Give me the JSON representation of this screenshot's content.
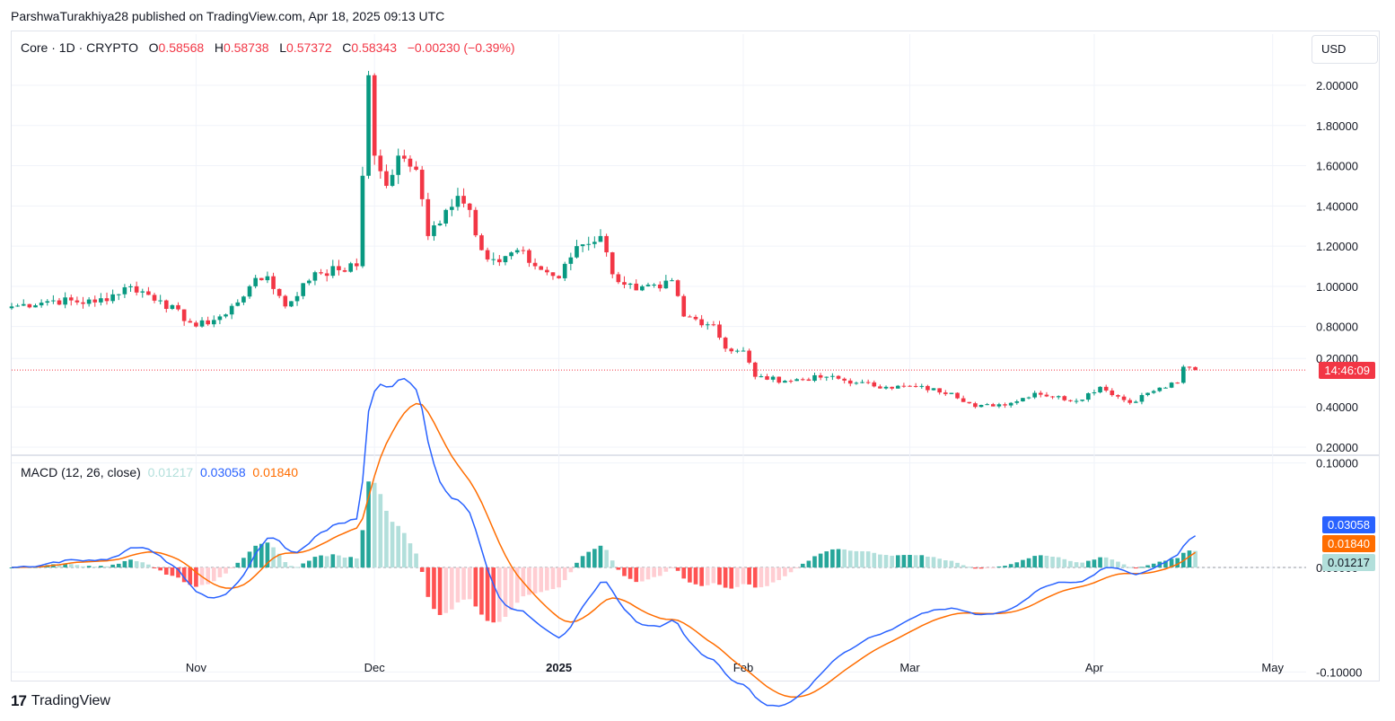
{
  "header": {
    "published_text": "ParshwaTurakhiya28 published on TradingView.com, Apr 18, 2025 09:13 UTC"
  },
  "legend": {
    "symbol": "Core · 1D · CRYPTO",
    "o_label": "O",
    "o_value": "0.58568",
    "h_label": "H",
    "h_value": "0.58738",
    "l_label": "L",
    "l_value": "0.57372",
    "c_label": "C",
    "c_value": "0.58343",
    "change": "−0.00230 (−0.39%)"
  },
  "currency": "USD",
  "countdown": "14:46:09",
  "macd_legend": {
    "label": "MACD (12, 26, close)",
    "hist": "0.01217",
    "macd": "0.03058",
    "signal": "0.01840"
  },
  "macd_labels": {
    "macd": "0.03058",
    "signal": "0.01840",
    "hist": "0.01217"
  },
  "footer": {
    "brand": "TradingView",
    "logo": "17"
  },
  "colors": {
    "up": "#089981",
    "down": "#f23645",
    "macd": "#2962ff",
    "signal": "#ff6d00",
    "hist_up_strong": "#26a69a",
    "hist_up_weak": "#b2dfdb",
    "hist_down_strong": "#ff5252",
    "hist_down_weak": "#ffcdd2",
    "grid": "#f0f3fa"
  },
  "chart_data": {
    "type": "candlestick",
    "price_axis": {
      "ticks": [
        "2.00000",
        "1.80000",
        "1.60000",
        "1.40000",
        "1.20000",
        "1.00000",
        "0.80000",
        "0.40000",
        "0.20000"
      ],
      "ylim": [
        0.2,
        2.0
      ]
    },
    "macd_axis": {
      "ticks": [
        "0.20000",
        "0.10000",
        "0.00000",
        "-0.10000"
      ],
      "ylim": [
        -0.14,
        0.2
      ]
    },
    "x_ticks": [
      "Nov",
      "Dec",
      "2025",
      "Feb",
      "Mar",
      "Apr",
      "May"
    ],
    "last_close": 0.58343,
    "anchors": [
      {
        "date": "2024-10-01",
        "close": 0.9
      },
      {
        "date": "2024-10-08",
        "close": 0.93
      },
      {
        "date": "2024-10-15",
        "close": 0.92
      },
      {
        "date": "2024-10-21",
        "close": 1.0
      },
      {
        "date": "2024-10-26",
        "close": 0.93
      },
      {
        "date": "2024-11-01",
        "close": 0.8
      },
      {
        "date": "2024-11-06",
        "close": 0.86
      },
      {
        "date": "2024-11-10",
        "close": 1.0
      },
      {
        "date": "2024-11-13",
        "close": 1.05
      },
      {
        "date": "2024-11-16",
        "close": 0.9
      },
      {
        "date": "2024-11-21",
        "close": 1.07
      },
      {
        "date": "2024-11-25",
        "close": 1.08
      },
      {
        "date": "2024-11-28",
        "close": 1.1
      },
      {
        "date": "2024-11-29",
        "close": 1.55
      },
      {
        "date": "2024-11-30",
        "close": 2.05
      },
      {
        "date": "2024-12-01",
        "close": 1.65
      },
      {
        "date": "2024-12-03",
        "close": 1.5
      },
      {
        "date": "2024-12-05",
        "close": 1.65
      },
      {
        "date": "2024-12-08",
        "close": 1.58
      },
      {
        "date": "2024-12-10",
        "close": 1.25
      },
      {
        "date": "2024-12-13",
        "close": 1.38
      },
      {
        "date": "2024-12-15",
        "close": 1.45
      },
      {
        "date": "2024-12-17",
        "close": 1.38
      },
      {
        "date": "2024-12-19",
        "close": 1.18
      },
      {
        "date": "2024-12-22",
        "close": 1.12
      },
      {
        "date": "2024-12-25",
        "close": 1.18
      },
      {
        "date": "2024-12-28",
        "close": 1.1
      },
      {
        "date": "2025-01-01",
        "close": 1.04
      },
      {
        "date": "2025-01-04",
        "close": 1.2
      },
      {
        "date": "2025-01-08",
        "close": 1.25
      },
      {
        "date": "2025-01-10",
        "close": 1.06
      },
      {
        "date": "2025-01-14",
        "close": 0.98
      },
      {
        "date": "2025-01-18",
        "close": 0.99
      },
      {
        "date": "2025-01-20",
        "close": 1.03
      },
      {
        "date": "2025-01-22",
        "close": 0.85
      },
      {
        "date": "2025-01-27",
        "close": 0.81
      },
      {
        "date": "2025-01-29",
        "close": 0.69
      },
      {
        "date": "2025-02-01",
        "close": 0.68
      },
      {
        "date": "2025-02-03",
        "close": 0.55
      },
      {
        "date": "2025-02-08",
        "close": 0.53
      },
      {
        "date": "2025-02-15",
        "close": 0.55
      },
      {
        "date": "2025-02-20",
        "close": 0.52
      },
      {
        "date": "2025-02-25",
        "close": 0.5
      },
      {
        "date": "2025-03-02",
        "close": 0.5
      },
      {
        "date": "2025-03-08",
        "close": 0.47
      },
      {
        "date": "2025-03-12",
        "close": 0.4
      },
      {
        "date": "2025-03-18",
        "close": 0.42
      },
      {
        "date": "2025-03-22",
        "close": 0.47
      },
      {
        "date": "2025-03-29",
        "close": 0.43
      },
      {
        "date": "2025-04-02",
        "close": 0.5
      },
      {
        "date": "2025-04-07",
        "close": 0.42
      },
      {
        "date": "2025-04-10",
        "close": 0.47
      },
      {
        "date": "2025-04-15",
        "close": 0.52
      },
      {
        "date": "2025-04-16",
        "close": 0.6
      },
      {
        "date": "2025-04-18",
        "close": 0.58343
      }
    ]
  }
}
